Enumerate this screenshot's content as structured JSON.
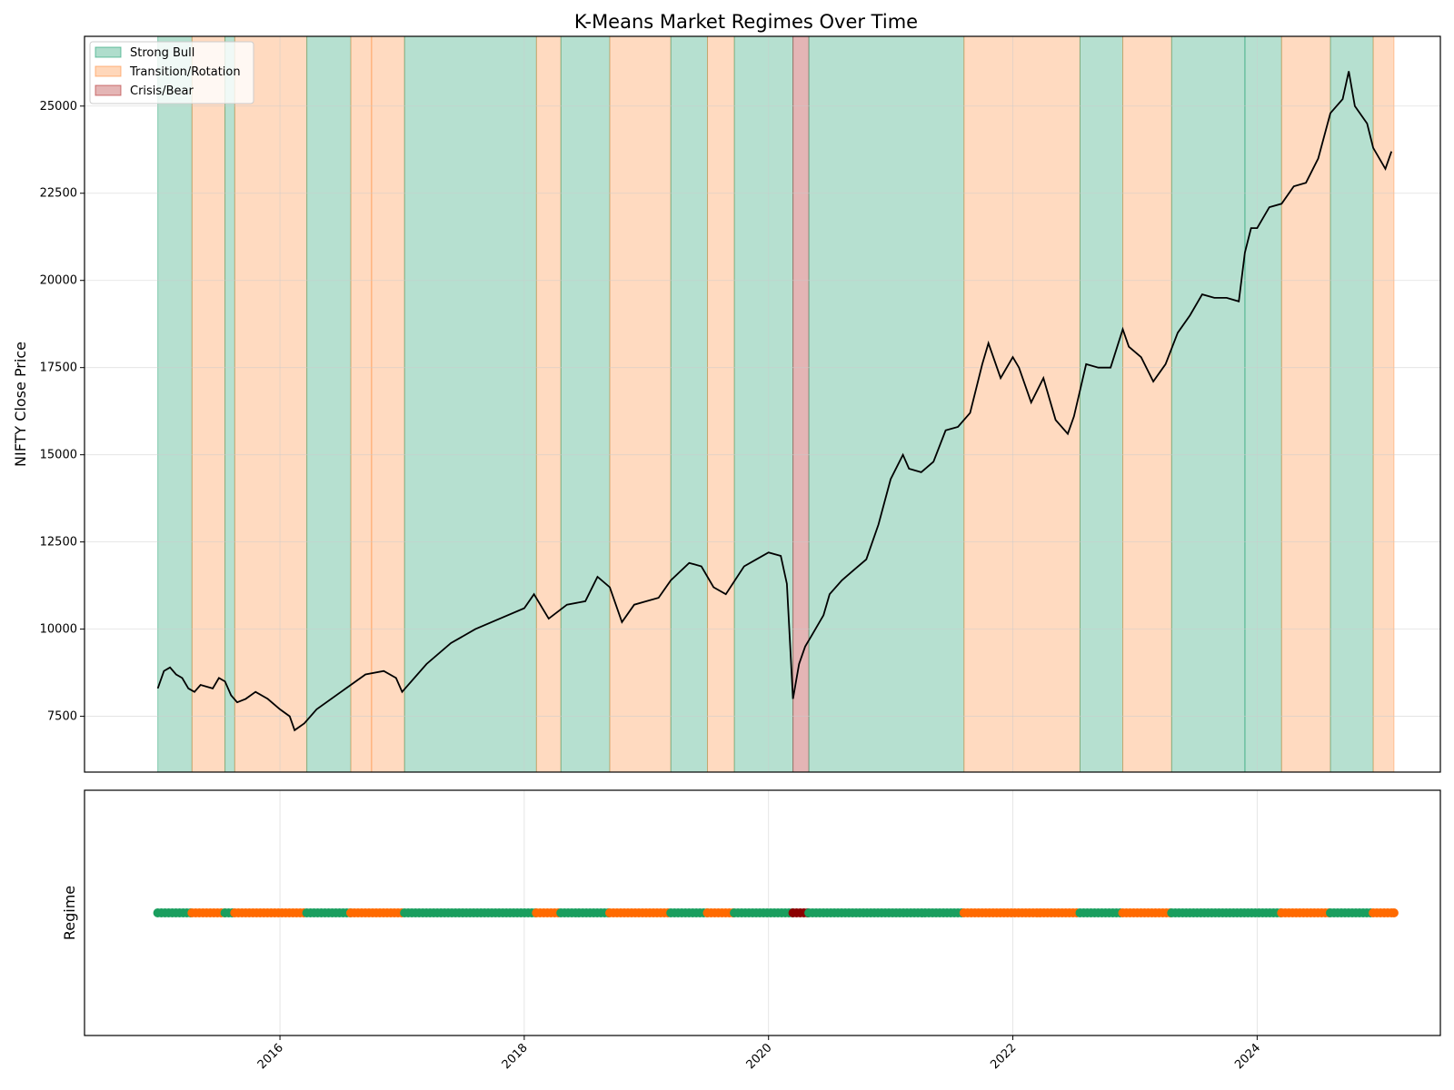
{
  "chart_data": [
    {
      "type": "line",
      "title": "K-Means Market Regimes Over Time",
      "xlabel": "",
      "ylabel": "NIFTY Close Price",
      "xlim": [
        2014.4,
        2025.5
      ],
      "ylim": [
        5900,
        27000
      ],
      "y_ticks": [
        7500,
        10000,
        12500,
        15000,
        17500,
        20000,
        22500,
        25000
      ],
      "grid": true,
      "legend": {
        "placement": "upper-left",
        "entries": [
          {
            "label": "Strong Bull",
            "color": "#1b9e6d"
          },
          {
            "label": "Transition/Rotation",
            "color": "#ff8c3a"
          },
          {
            "label": "Crisis/Bear",
            "color": "#b22a2a"
          }
        ]
      },
      "line_color": "#000000",
      "series": [
        {
          "x": [
            2015.0,
            2015.05,
            2015.1,
            2015.15,
            2015.2,
            2015.25,
            2015.3,
            2015.35,
            2015.45,
            2015.5,
            2015.55,
            2015.6,
            2015.65,
            2015.72,
            2015.8,
            2015.9,
            2016.0,
            2016.08,
            2016.12,
            2016.2,
            2016.3,
            2016.5,
            2016.7,
            2016.85,
            2016.95,
            2017.0,
            2017.2,
            2017.4,
            2017.6,
            2017.8,
            2018.0,
            2018.08,
            2018.2,
            2018.35,
            2018.5,
            2018.6,
            2018.7,
            2018.8,
            2018.9,
            2019.0,
            2019.1,
            2019.2,
            2019.35,
            2019.45,
            2019.55,
            2019.65,
            2019.8,
            2019.9,
            2020.0,
            2020.1,
            2020.15,
            2020.2,
            2020.25,
            2020.3,
            2020.35,
            2020.45,
            2020.5,
            2020.6,
            2020.7,
            2020.8,
            2020.9,
            2021.0,
            2021.1,
            2021.15,
            2021.25,
            2021.35,
            2021.45,
            2021.55,
            2021.65,
            2021.75,
            2021.8,
            2021.9,
            2022.0,
            2022.05,
            2022.15,
            2022.25,
            2022.35,
            2022.45,
            2022.5,
            2022.6,
            2022.7,
            2022.8,
            2022.9,
            2022.95,
            2023.05,
            2023.15,
            2023.25,
            2023.35,
            2023.45,
            2023.55,
            2023.65,
            2023.75,
            2023.85,
            2023.9,
            2023.95,
            2024.0,
            2024.1,
            2024.2,
            2024.3,
            2024.4,
            2024.5,
            2024.6,
            2024.7,
            2024.75,
            2024.8,
            2024.9,
            2024.95,
            2025.05,
            2025.1
          ],
          "y": [
            8300,
            8800,
            8900,
            8700,
            8600,
            8300,
            8200,
            8400,
            8300,
            8600,
            8500,
            8100,
            7900,
            8000,
            8200,
            8000,
            7700,
            7500,
            7100,
            7300,
            7700,
            8200,
            8700,
            8800,
            8600,
            8200,
            9000,
            9600,
            10000,
            10300,
            10600,
            11000,
            10300,
            10700,
            10800,
            11500,
            11200,
            10200,
            10700,
            10800,
            10900,
            11400,
            11900,
            11800,
            11200,
            11000,
            11800,
            12000,
            12200,
            12100,
            11300,
            8000,
            9000,
            9500,
            9800,
            10400,
            11000,
            11400,
            11700,
            12000,
            13000,
            14300,
            15000,
            14600,
            14500,
            14800,
            15700,
            15800,
            16200,
            17600,
            18200,
            17200,
            17800,
            17500,
            16500,
            17200,
            16000,
            15600,
            16100,
            17600,
            17500,
            17500,
            18600,
            18100,
            17800,
            17100,
            17600,
            18500,
            19000,
            19600,
            19500,
            19500,
            19400,
            20800,
            21500,
            21500,
            22100,
            22200,
            22700,
            22800,
            23500,
            24800,
            25200,
            26000,
            25000,
            24500,
            23800,
            23200,
            23700
          ]
        }
      ],
      "regime_spans": [
        {
          "start": 2015.0,
          "end": 2015.28,
          "regime": "Strong Bull"
        },
        {
          "start": 2015.28,
          "end": 2015.55,
          "regime": "Transition/Rotation"
        },
        {
          "start": 2015.55,
          "end": 2015.63,
          "regime": "Strong Bull"
        },
        {
          "start": 2015.63,
          "end": 2016.22,
          "regime": "Transition/Rotation"
        },
        {
          "start": 2016.22,
          "end": 2016.58,
          "regime": "Strong Bull"
        },
        {
          "start": 2016.58,
          "end": 2016.75,
          "regime": "Transition/Rotation"
        },
        {
          "start": 2016.75,
          "end": 2017.02,
          "regime": "Transition/Rotation"
        },
        {
          "start": 2017.02,
          "end": 2018.1,
          "regime": "Strong Bull"
        },
        {
          "start": 2018.1,
          "end": 2018.3,
          "regime": "Transition/Rotation"
        },
        {
          "start": 2018.3,
          "end": 2018.7,
          "regime": "Strong Bull"
        },
        {
          "start": 2018.7,
          "end": 2019.2,
          "regime": "Transition/Rotation"
        },
        {
          "start": 2019.2,
          "end": 2019.5,
          "regime": "Strong Bull"
        },
        {
          "start": 2019.5,
          "end": 2019.72,
          "regime": "Transition/Rotation"
        },
        {
          "start": 2019.72,
          "end": 2020.2,
          "regime": "Strong Bull"
        },
        {
          "start": 2020.2,
          "end": 2020.33,
          "regime": "Crisis/Bear"
        },
        {
          "start": 2020.33,
          "end": 2021.6,
          "regime": "Strong Bull"
        },
        {
          "start": 2021.6,
          "end": 2022.55,
          "regime": "Transition/Rotation"
        },
        {
          "start": 2022.55,
          "end": 2022.9,
          "regime": "Strong Bull"
        },
        {
          "start": 2022.9,
          "end": 2023.3,
          "regime": "Transition/Rotation"
        },
        {
          "start": 2023.3,
          "end": 2023.9,
          "regime": "Strong Bull"
        },
        {
          "start": 2023.9,
          "end": 2024.2,
          "regime": "Strong Bull"
        },
        {
          "start": 2024.2,
          "end": 2024.6,
          "regime": "Transition/Rotation"
        },
        {
          "start": 2024.6,
          "end": 2024.95,
          "regime": "Strong Bull"
        },
        {
          "start": 2024.95,
          "end": 2025.12,
          "regime": "Transition/Rotation"
        }
      ]
    },
    {
      "type": "scatter",
      "title": "",
      "xlabel": "",
      "ylabel": "Regime",
      "xlim": [
        2014.4,
        2025.5
      ],
      "x_ticks": [
        2016,
        2018,
        2020,
        2022,
        2024
      ],
      "grid": true,
      "marker_colors": {
        "Strong Bull": "#1a9e5e",
        "Transition/Rotation": "#ff6a00",
        "Crisis/Bear": "#8b0000"
      },
      "points": [
        {
          "x": 2015.0,
          "regime": "Strong Bull"
        },
        {
          "x": 2015.28,
          "regime": "Transition/Rotation"
        },
        {
          "x": 2015.55,
          "regime": "Strong Bull"
        },
        {
          "x": 2015.63,
          "regime": "Transition/Rotation"
        },
        {
          "x": 2016.22,
          "regime": "Strong Bull"
        },
        {
          "x": 2016.58,
          "regime": "Transition/Rotation"
        },
        {
          "x": 2017.02,
          "regime": "Strong Bull"
        },
        {
          "x": 2018.1,
          "regime": "Transition/Rotation"
        },
        {
          "x": 2018.3,
          "regime": "Strong Bull"
        },
        {
          "x": 2018.7,
          "regime": "Transition/Rotation"
        },
        {
          "x": 2019.2,
          "regime": "Strong Bull"
        },
        {
          "x": 2019.5,
          "regime": "Transition/Rotation"
        },
        {
          "x": 2019.72,
          "regime": "Strong Bull"
        },
        {
          "x": 2020.2,
          "regime": "Crisis/Bear"
        },
        {
          "x": 2020.33,
          "regime": "Strong Bull"
        },
        {
          "x": 2021.6,
          "regime": "Transition/Rotation"
        },
        {
          "x": 2022.55,
          "regime": "Strong Bull"
        },
        {
          "x": 2022.9,
          "regime": "Transition/Rotation"
        },
        {
          "x": 2023.3,
          "regime": "Strong Bull"
        },
        {
          "x": 2024.2,
          "regime": "Transition/Rotation"
        },
        {
          "x": 2024.6,
          "regime": "Strong Bull"
        },
        {
          "x": 2024.95,
          "regime": "Transition/Rotation"
        },
        {
          "x": 2025.12,
          "regime": "Transition/Rotation"
        }
      ]
    }
  ]
}
